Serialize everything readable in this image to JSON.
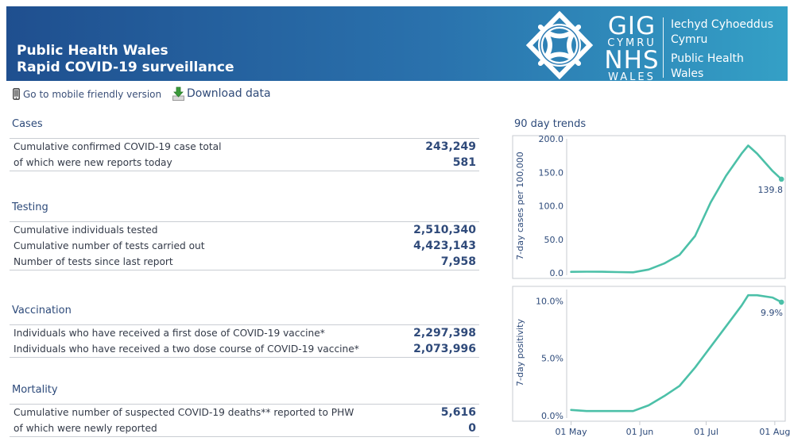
{
  "header": {
    "title_line1": "Public Health Wales",
    "title_line2": "Rapid COVID-19 surveillance",
    "logo": {
      "gig": "GIG",
      "cymru": "CYMRU",
      "nhs": "NHS",
      "wales": "WALES",
      "welsh_name_line1": "Iechyd Cyhoeddus",
      "welsh_name_line2": "Cymru",
      "english_name_line1": "Public Health",
      "english_name_line2": "Wales"
    }
  },
  "links": {
    "mobile": "Go to mobile friendly version",
    "download": "Download data"
  },
  "icons": {
    "mobile": "mobile-phone-icon",
    "download": "download-arrow-icon"
  },
  "sections": {
    "cases": {
      "title": "Cases",
      "rows": [
        {
          "label": "Cumulative confirmed COVID-19 case total",
          "value": "243,249"
        },
        {
          "label": "of which were new reports today",
          "value": "581"
        }
      ]
    },
    "testing": {
      "title": "Testing",
      "rows": [
        {
          "label": "Cumulative individuals tested",
          "value": "2,510,340"
        },
        {
          "label": "Cumulative number of tests carried out",
          "value": "4,423,143"
        },
        {
          "label": "Number of tests since last report",
          "value": "7,958"
        }
      ]
    },
    "vaccination": {
      "title": "Vaccination",
      "rows": [
        {
          "label": "Individuals who have received a first dose of COVID-19 vaccine*",
          "value": "2,297,398"
        },
        {
          "label": "Individuals who have received a two dose course of COVID-19 vaccine*",
          "value": "2,073,996"
        }
      ]
    },
    "mortality": {
      "title": "Mortality",
      "rows": [
        {
          "label": "Cumulative number of suspected COVID-19 deaths** reported to PHW",
          "value": "5,616"
        },
        {
          "label": "of which were newly reported",
          "value": "0"
        }
      ]
    }
  },
  "trends": {
    "title": "90 day trends"
  },
  "chart_data": [
    {
      "type": "line",
      "ylabel": "7-day cases per 100,000",
      "ylim": [
        0,
        200
      ],
      "yticks": [
        "0.0",
        "50.0",
        "100.0",
        "150.0",
        "200.0"
      ],
      "x": [
        "2021-05-01",
        "2021-05-08",
        "2021-05-15",
        "2021-05-22",
        "2021-05-29",
        "2021-06-05",
        "2021-06-12",
        "2021-06-19",
        "2021-06-26",
        "2021-07-03",
        "2021-07-10",
        "2021-07-17",
        "2021-07-20",
        "2021-07-24",
        "2021-07-31",
        "2021-08-04"
      ],
      "series": [
        {
          "values": [
            1.5,
            1.8,
            1.6,
            1.2,
            0.8,
            5,
            14,
            27,
            55,
            105,
            145,
            178,
            190,
            178,
            152,
            139.8
          ]
        }
      ],
      "last_value_label": "139.8",
      "color": "#4cc0a8"
    },
    {
      "type": "line",
      "ylabel": "7-day positivity",
      "ylim": [
        0,
        11
      ],
      "yticks": [
        "0.0%",
        "5.0%",
        "10.0%"
      ],
      "x": [
        "2021-05-01",
        "2021-05-08",
        "2021-05-15",
        "2021-05-22",
        "2021-05-29",
        "2021-06-05",
        "2021-06-12",
        "2021-06-19",
        "2021-06-26",
        "2021-07-03",
        "2021-07-10",
        "2021-07-17",
        "2021-07-20",
        "2021-07-24",
        "2021-07-31",
        "2021-08-04"
      ],
      "series": [
        {
          "values": [
            0.5,
            0.4,
            0.4,
            0.4,
            0.4,
            0.9,
            1.7,
            2.6,
            4.2,
            6.0,
            7.8,
            9.6,
            10.5,
            10.5,
            10.3,
            9.9
          ]
        }
      ],
      "last_value_label": "9.9%",
      "color": "#4cc0a8"
    }
  ],
  "xaxis": {
    "labels": [
      "01 May",
      "01 Jun",
      "01 Jul",
      "01 Aug"
    ],
    "dates": [
      "2021-05-01",
      "2021-06-01",
      "2021-07-01",
      "2021-08-01"
    ]
  }
}
